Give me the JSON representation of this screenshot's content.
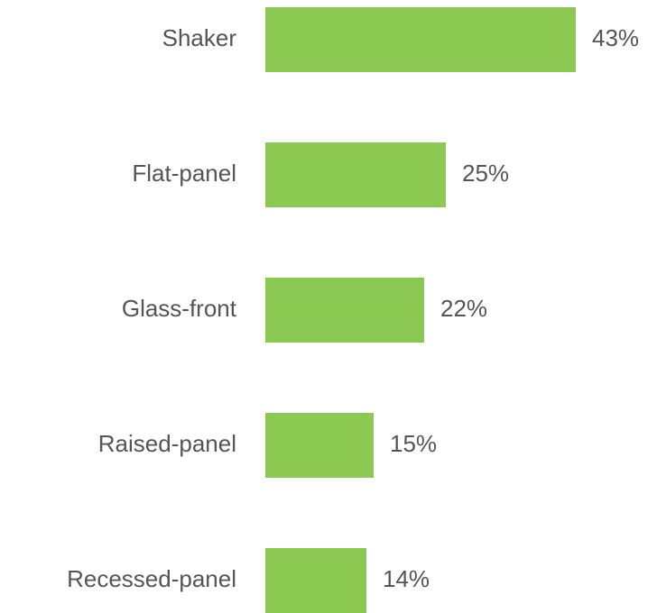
{
  "chart_data": {
    "type": "bar",
    "orientation": "horizontal",
    "categories": [
      "Shaker",
      "Flat-panel",
      "Glass-front",
      "Raised-panel",
      "Recessed-panel"
    ],
    "values": [
      43,
      25,
      22,
      15,
      14
    ],
    "value_labels": [
      "43%",
      "25%",
      "22%",
      "15%",
      "14%"
    ],
    "color": "#8bc952"
  }
}
